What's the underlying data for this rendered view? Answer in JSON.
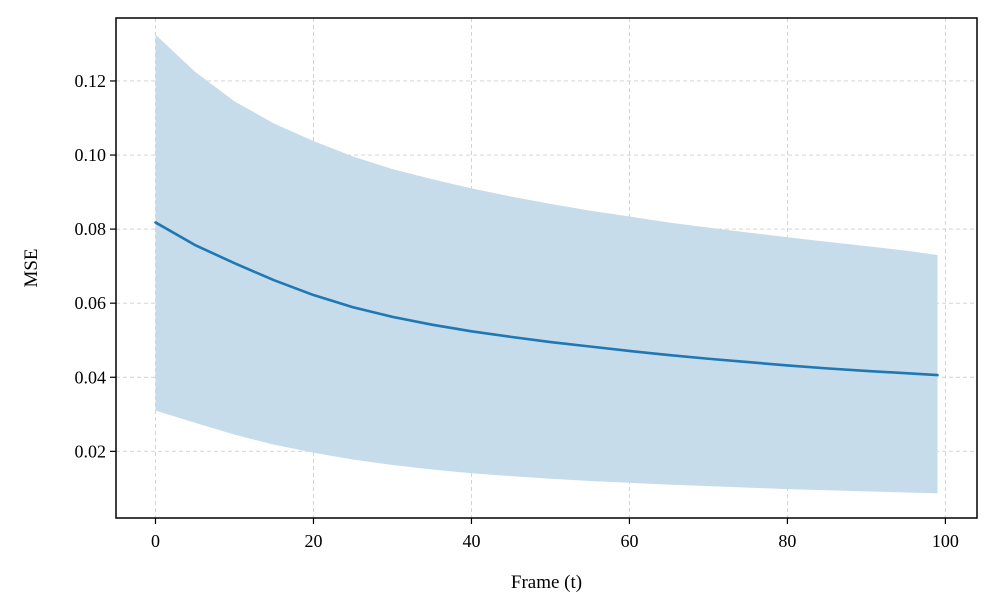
{
  "chart_data": {
    "type": "line",
    "title": "",
    "xlabel": "Frame (t)",
    "ylabel": "MSE",
    "xlim": [
      -5,
      104
    ],
    "ylim": [
      0.002,
      0.137
    ],
    "x_ticks": [
      0,
      20,
      40,
      60,
      80,
      100
    ],
    "x_tick_labels": [
      "0",
      "20",
      "40",
      "60",
      "80",
      "100"
    ],
    "y_ticks": [
      0.02,
      0.04,
      0.06,
      0.08,
      0.1,
      0.12
    ],
    "y_tick_labels": [
      "0.02",
      "0.04",
      "0.06",
      "0.08",
      "0.10",
      "0.12"
    ],
    "grid": true,
    "legend": "none",
    "series": [
      {
        "color": "#1f77b4",
        "band_color": "#c6dcea",
        "x": [
          0,
          5,
          10,
          15,
          20,
          25,
          30,
          35,
          40,
          45,
          50,
          55,
          60,
          65,
          70,
          75,
          80,
          85,
          90,
          95,
          99
        ],
        "mean": [
          0.0818,
          0.0757,
          0.0708,
          0.0662,
          0.0622,
          0.0589,
          0.0563,
          0.0542,
          0.0524,
          0.0509,
          0.0495,
          0.0483,
          0.0471,
          0.046,
          0.045,
          0.0441,
          0.0432,
          0.0424,
          0.0417,
          0.0411,
          0.0406
        ],
        "upper": [
          0.1325,
          0.1225,
          0.1145,
          0.1085,
          0.1038,
          0.0996,
          0.0962,
          0.0935,
          0.091,
          0.0888,
          0.0868,
          0.085,
          0.0834,
          0.0818,
          0.0804,
          0.0791,
          0.0778,
          0.0766,
          0.0754,
          0.0742,
          0.073
        ],
        "lower": [
          0.031,
          0.0277,
          0.0245,
          0.0218,
          0.0196,
          0.0178,
          0.0163,
          0.0151,
          0.0141,
          0.0133,
          0.0126,
          0.012,
          0.0115,
          0.011,
          0.0106,
          0.0102,
          0.0098,
          0.0095,
          0.0092,
          0.0089,
          0.0087
        ]
      }
    ]
  }
}
